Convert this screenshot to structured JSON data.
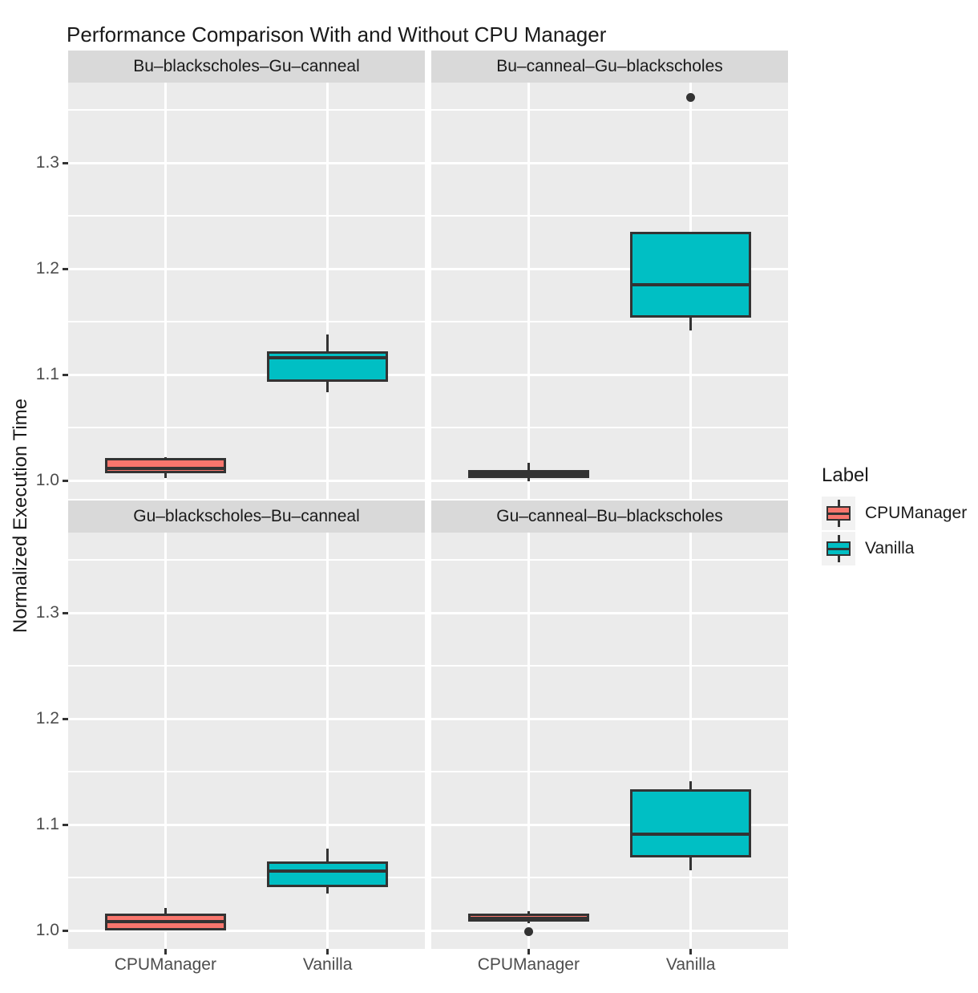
{
  "chart_data": {
    "type": "boxplot",
    "title": "Performance Comparison With and Without CPU Manager",
    "ylabel": "Normalized Execution Time",
    "xlabel": "",
    "x_categories": [
      "CPUManager",
      "Vanilla"
    ],
    "y_ticks": [
      {
        "v": 1.0,
        "label": "1.0"
      },
      {
        "v": 1.1,
        "label": "1.1"
      },
      {
        "v": 1.2,
        "label": "1.2"
      },
      {
        "v": 1.3,
        "label": "1.3"
      }
    ],
    "y_minor_ticks": [
      1.05,
      1.15,
      1.25,
      1.35
    ],
    "ylim": [
      0.982,
      1.376
    ],
    "grid": true,
    "legend": {
      "title": "Label",
      "position": "right",
      "entries": [
        {
          "label": "CPUManager",
          "color": "#F8766D"
        },
        {
          "label": "Vanilla",
          "color": "#00BFC4"
        }
      ]
    },
    "facets": [
      {
        "label": "Bu–blackscholes–Gu–canneal",
        "boxes": [
          {
            "group": "CPUManager",
            "color": "#F8766D",
            "whisker_low": 1.002,
            "q1": 1.007,
            "median": 1.014,
            "q3": 1.021,
            "whisker_high": 1.022,
            "outliers": []
          },
          {
            "group": "Vanilla",
            "color": "#00BFC4",
            "whisker_low": 1.083,
            "q1": 1.093,
            "median": 1.118,
            "q3": 1.122,
            "whisker_high": 1.138,
            "outliers": []
          }
        ]
      },
      {
        "label": "Bu–canneal–Gu–blackscholes",
        "boxes": [
          {
            "group": "CPUManager",
            "color": "#F8766D",
            "whisker_low": 0.999,
            "q1": 1.002,
            "median": 1.008,
            "q3": 1.01,
            "whisker_high": 1.017,
            "outliers": []
          },
          {
            "group": "Vanilla",
            "color": "#00BFC4",
            "whisker_low": 1.142,
            "q1": 1.154,
            "median": 1.187,
            "q3": 1.235,
            "whisker_high": 1.235,
            "outliers": [
              1.362
            ]
          }
        ]
      },
      {
        "label": "Gu–blackscholes–Bu–canneal",
        "boxes": [
          {
            "group": "CPUManager",
            "color": "#F8766D",
            "whisker_low": 1.0,
            "q1": 1.0,
            "median": 1.011,
            "q3": 1.016,
            "whisker_high": 1.021,
            "outliers": []
          },
          {
            "group": "Vanilla",
            "color": "#00BFC4",
            "whisker_low": 1.035,
            "q1": 1.041,
            "median": 1.058,
            "q3": 1.065,
            "whisker_high": 1.077,
            "outliers": []
          }
        ]
      },
      {
        "label": "Gu–canneal–Bu–blackscholes",
        "boxes": [
          {
            "group": "CPUManager",
            "color": "#F8766D",
            "whisker_low": 1.007,
            "q1": 1.008,
            "median": 1.014,
            "q3": 1.016,
            "whisker_high": 1.018,
            "outliers": [
              0.999
            ]
          },
          {
            "group": "Vanilla",
            "color": "#00BFC4",
            "whisker_low": 1.057,
            "q1": 1.069,
            "median": 1.093,
            "q3": 1.133,
            "whisker_high": 1.141,
            "outliers": []
          }
        ]
      }
    ],
    "colors": {
      "panel_bg": "#EBEBEB",
      "strip_bg": "#D9D9D9",
      "gridline": "#FFFFFF",
      "box_outline": "#333333",
      "outlier": "#333333",
      "tick_text": "#4D4D4D",
      "text": "#1A1A1A",
      "legend_key_bg": "#F2F2F2"
    }
  }
}
